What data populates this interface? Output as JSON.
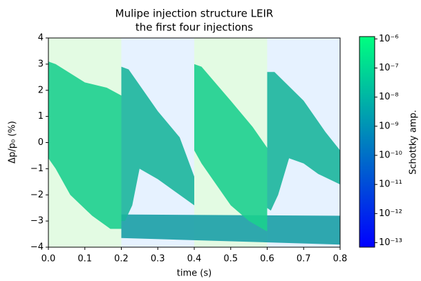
{
  "chart_data": {
    "type": "heatmap",
    "title": [
      "Mulipe injection structure LEIR",
      "the first four injections"
    ],
    "x_label": "time (s)",
    "y_label": "Δp/p₀ (%)",
    "colorbar_label": "Schottky amp.",
    "xlim": [
      0,
      0.8
    ],
    "xticks": [
      {
        "value": 0,
        "label": "0.0"
      },
      0.1,
      0.2,
      0.3,
      0.4,
      0.5,
      0.6,
      0.7,
      0.8
    ],
    "ylim": [
      -4,
      4
    ],
    "yticks": [
      {
        "value": -4,
        "label": "−4"
      },
      {
        "value": -3,
        "label": "−3"
      },
      {
        "value": -2,
        "label": "−2"
      },
      {
        "value": -1,
        "label": "−1"
      },
      0,
      1,
      2,
      3,
      4
    ],
    "colorbar_scale": "log",
    "clim": [
      7e-14,
      1.2e-06
    ],
    "colorbar_colors": [
      "#0000ff",
      "#00ff80"
    ],
    "colorbar_ticks": [
      {
        "value": 1e-06,
        "label": "10⁻⁶"
      },
      {
        "value": 1e-07,
        "label": "10⁻⁷"
      },
      {
        "value": 1e-08,
        "label": "10⁻⁸"
      },
      {
        "value": 1e-09,
        "label": "10⁻⁹"
      },
      {
        "value": 1e-10,
        "label": "10⁻¹⁰"
      },
      {
        "value": 1e-11,
        "label": "10⁻¹¹"
      },
      {
        "value": 1e-12,
        "label": "10⁻¹²"
      },
      {
        "value": 1e-13,
        "label": "10⁻¹³"
      }
    ],
    "shaded_regions": [
      {
        "x": [
          0,
          0.2
        ],
        "color": "#e3fbe3"
      },
      {
        "x": [
          0.2,
          0.4
        ],
        "color": "#e6f2ff"
      },
      {
        "x": [
          0.4,
          0.6
        ],
        "color": "#e3fbe3"
      },
      {
        "x": [
          0.6,
          0.8
        ],
        "color": "#e6f2ff"
      }
    ],
    "regions": [
      {
        "color": "#1ccf8e",
        "x": [
          0,
          0.02,
          0.1,
          0.16,
          0.2,
          0.2,
          0.17,
          0.12,
          0.06,
          0.02,
          0
        ],
        "y": [
          3.1,
          3.0,
          2.3,
          2.1,
          1.8,
          -3.3,
          -3.3,
          -2.8,
          -2.0,
          -1.0,
          -0.6
        ]
      },
      {
        "color": "#1a9fa6",
        "x": [
          0.2,
          0.8,
          0.8,
          0.2
        ],
        "y": [
          -2.75,
          -2.8,
          -3.9,
          -3.65
        ]
      },
      {
        "color": "#1bb59c",
        "x": [
          0.2,
          0.22,
          0.3,
          0.36,
          0.4,
          0.4,
          0.3,
          0.25,
          0.23,
          0.21,
          0.2
        ],
        "y": [
          2.9,
          2.8,
          1.2,
          0.2,
          -1.3,
          -2.4,
          -1.4,
          -1.0,
          -2.4,
          -3.0,
          -3.0
        ]
      },
      {
        "color": "#1ccf8e",
        "x": [
          0.4,
          0.42,
          0.5,
          0.56,
          0.6,
          0.6,
          0.55,
          0.5,
          0.46,
          0.42,
          0.4
        ],
        "y": [
          3.0,
          2.9,
          1.6,
          0.6,
          -0.2,
          -3.4,
          -3.0,
          -2.4,
          -1.6,
          -0.8,
          -0.3
        ]
      },
      {
        "color": "#1bb59c",
        "x": [
          0.6,
          0.62,
          0.7,
          0.76,
          0.8,
          0.8,
          0.74,
          0.7,
          0.66,
          0.63,
          0.61,
          0.6
        ],
        "y": [
          2.7,
          2.7,
          1.6,
          0.4,
          -0.3,
          -1.6,
          -1.2,
          -0.8,
          -0.6,
          -2.0,
          -2.6,
          -2.5
        ]
      }
    ]
  }
}
